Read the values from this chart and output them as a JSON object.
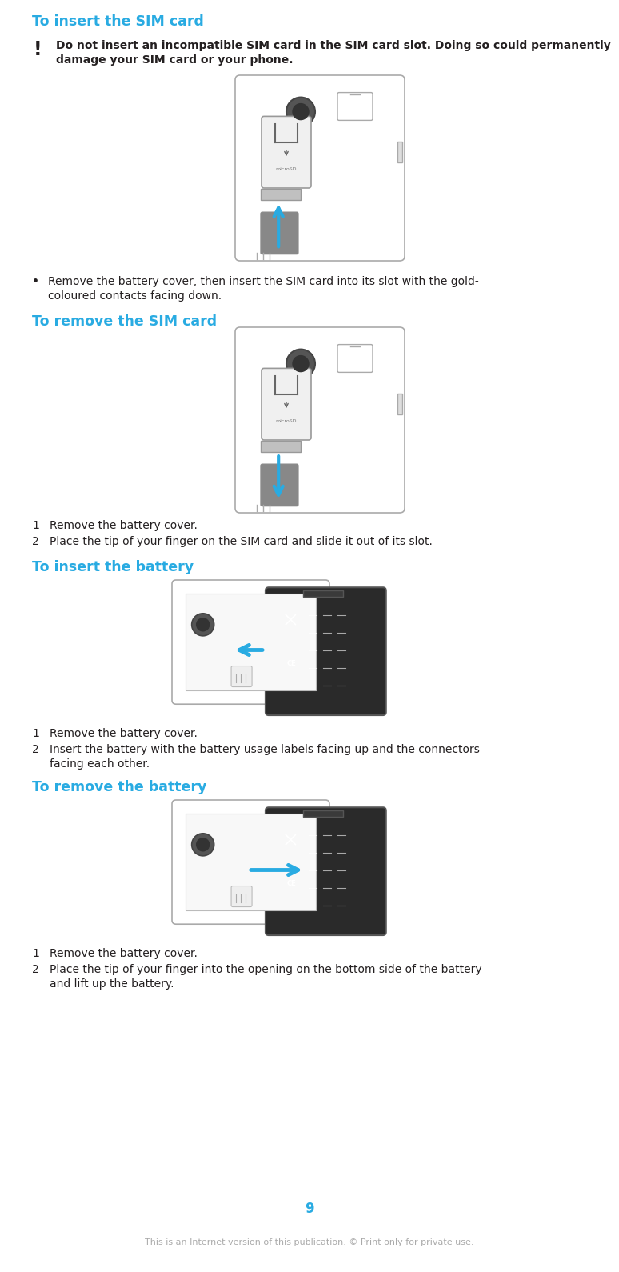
{
  "bg_color": "#ffffff",
  "cyan_color": "#29abe2",
  "black_color": "#231f20",
  "dark_gray": "#666666",
  "mid_gray": "#999999",
  "light_gray": "#cccccc",
  "page_number": "9",
  "footer_text": "This is an Internet version of this publication. © Print only for private use.",
  "title1": "To insert the SIM card",
  "warning_text_line1": "Do not insert an incompatible SIM card in the SIM card slot. Doing so could permanently",
  "warning_text_line2": "damage your SIM card or your phone.",
  "bullet1_line1": "Remove the battery cover, then insert the SIM card into its slot with the gold-",
  "bullet1_line2": "coloured contacts facing down.",
  "title2": "To remove the SIM card",
  "step2_1_num": "1",
  "step2_1_text": "Remove the battery cover.",
  "step2_2_num": "2",
  "step2_2_text": "Place the tip of your finger on the SIM card and slide it out of its slot.",
  "title3": "To insert the battery",
  "step3_1_num": "1",
  "step3_1_text": "Remove the battery cover.",
  "step3_2_num": "2",
  "step3_2_text_line1": "Insert the battery with the battery usage labels facing up and the connectors",
  "step3_2_text_line2": "facing each other.",
  "title4": "To remove the battery",
  "step4_1_num": "1",
  "step4_1_text": "Remove the battery cover.",
  "step4_2_num": "2",
  "step4_2_text_line1": "Place the tip of your finger into the opening on the bottom side of the battery",
  "step4_2_text_line2": "and lift up the battery."
}
